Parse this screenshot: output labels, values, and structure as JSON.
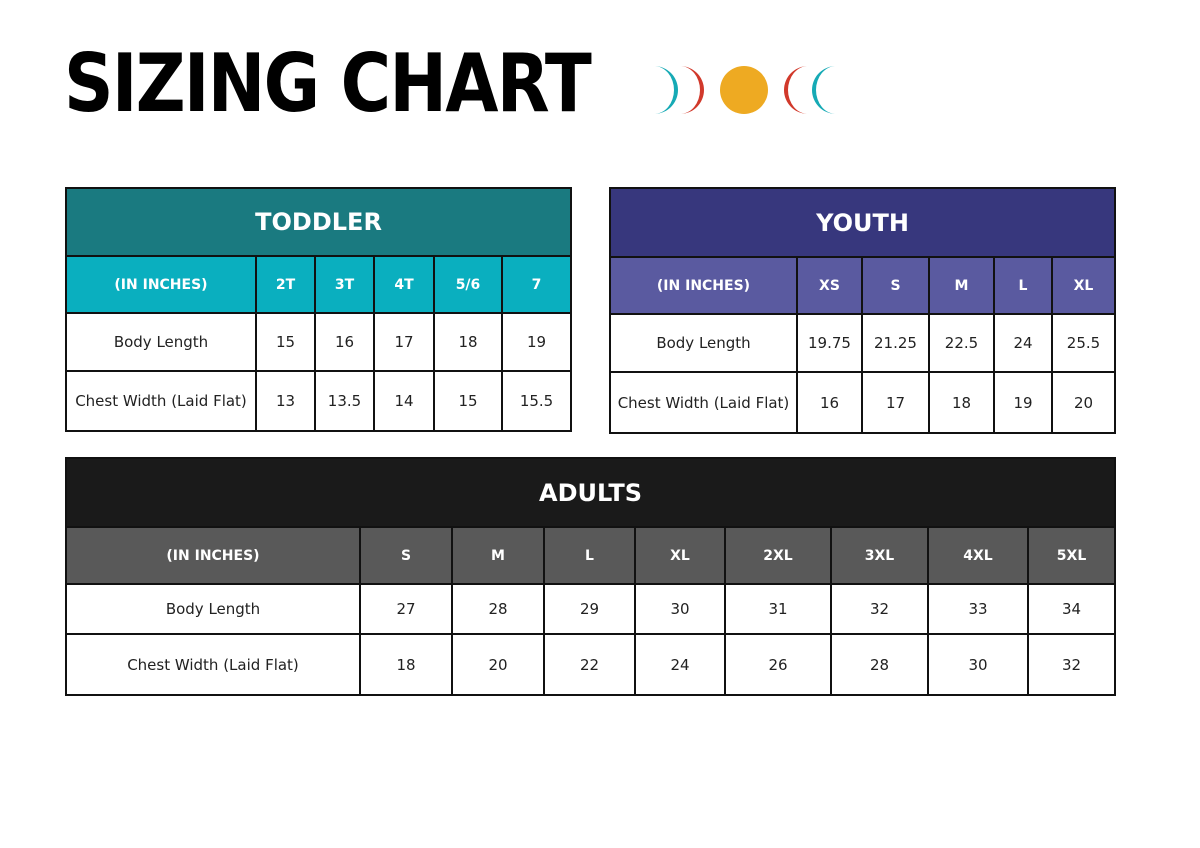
{
  "header": {
    "title": "SIZING CHART"
  },
  "tables": [
    {
      "title": "TODDLER",
      "columns": [
        "(IN INCHES)",
        "2T",
        "3T",
        "4T",
        "5/6",
        "7"
      ],
      "rows": [
        [
          "Body Length",
          15,
          16,
          17,
          18,
          19
        ],
        [
          "Chest Width (Laid Flat)",
          13,
          13.5,
          14,
          15,
          15.5
        ]
      ]
    },
    {
      "title": "YOUTH",
      "columns": [
        "(IN INCHES)",
        "XS",
        "S",
        "M",
        "L",
        "XL"
      ],
      "rows": [
        [
          "Body Length",
          19.75,
          21.25,
          22.5,
          24,
          25.5
        ],
        [
          "Chest Width (Laid Flat)",
          16,
          17,
          18,
          19,
          20
        ]
      ]
    },
    {
      "title": "ADULTS",
      "columns": [
        "(IN INCHES)",
        "S",
        "M",
        "L",
        "XL",
        "2XL",
        "3XL",
        "4XL",
        "5XL"
      ],
      "rows": [
        [
          "Body Length",
          27,
          28,
          29,
          30,
          31,
          32,
          33,
          34
        ],
        [
          "Chest Width (Laid Flat)",
          18,
          20,
          22,
          24,
          26,
          28,
          30,
          32
        ]
      ]
    }
  ]
}
